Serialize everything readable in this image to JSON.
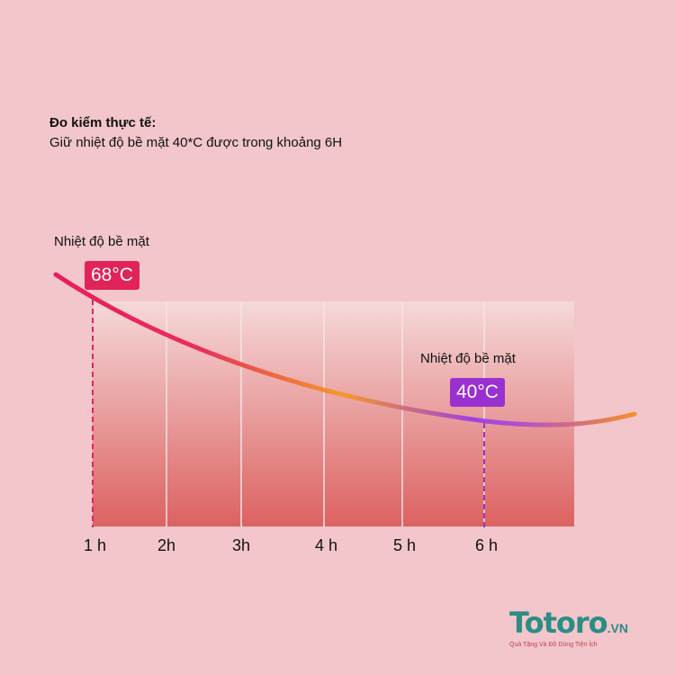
{
  "header": {
    "title": "Đo kiểm thực tế:",
    "subtitle": "Giữ nhiệt độ bề mặt 40*C được trong khoảng 6H"
  },
  "chart_data": {
    "type": "line",
    "categories": [
      "1 h",
      "2h",
      "3h",
      "4 h",
      "5 h",
      "6 h"
    ],
    "annotations": [
      {
        "label": "Nhiệt độ bề mặt",
        "value": "68°C",
        "at": "1 h",
        "color": "#e0245a"
      },
      {
        "label": "Nhiệt độ bề mặt",
        "value": "40°C",
        "at": "6 h",
        "color": "#9b30d0"
      }
    ],
    "series_colors": [
      "#e0245a",
      "#f5902a",
      "#a040e0",
      "#f5902a"
    ]
  },
  "logo": {
    "name": "Totoro",
    "suffix": ".VN",
    "tagline": "Quà Tặng Và Đồ Dùng Tiện Ích"
  }
}
